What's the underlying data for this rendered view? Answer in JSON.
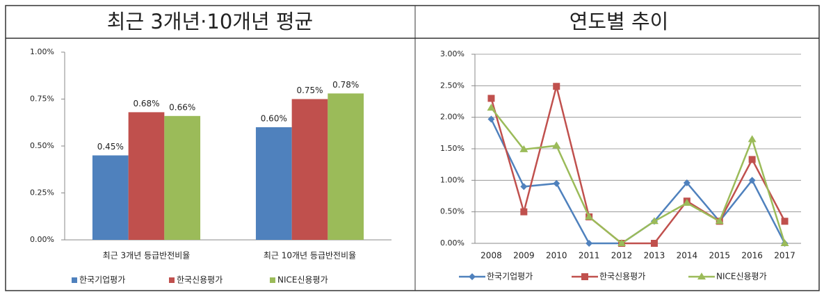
{
  "headers": [
    "최근 3개년·10개년 평균",
    "연도별 추이"
  ],
  "chart_data": [
    {
      "type": "bar",
      "categories": [
        "최근 3개년 등급반전비율",
        "최근 10개년 등급반전비율"
      ],
      "series": [
        {
          "name": "한국기업평가",
          "color": "#4f81bd",
          "values": [
            0.45,
            0.6
          ],
          "value_labels": [
            "0.45%",
            "0.60%"
          ]
        },
        {
          "name": "한국신용평가",
          "color": "#c0504d",
          "values": [
            0.68,
            0.75
          ],
          "value_labels": [
            "0.68%",
            "0.75%"
          ]
        },
        {
          "name": "NICE신용평가",
          "color": "#9bbb59",
          "values": [
            0.66,
            0.78
          ],
          "value_labels": [
            "0.66%",
            "0.78%"
          ]
        }
      ],
      "ylim": [
        0,
        1
      ],
      "yticks": [
        {
          "value": 0,
          "label": "0.00%"
        },
        {
          "value": 0.25,
          "label": "0.25%"
        },
        {
          "value": 0.5,
          "label": "0.50%"
        },
        {
          "value": 0.75,
          "label": "0.75%"
        },
        {
          "value": 1,
          "label": "1.00%"
        }
      ],
      "grid": false,
      "legend": "bottom"
    },
    {
      "type": "line",
      "categories": [
        "2008",
        "2009",
        "2010",
        "2011",
        "2012",
        "2013",
        "2014",
        "2015",
        "2016",
        "2017"
      ],
      "series": [
        {
          "name": "한국기업평가",
          "color": "#4f81bd",
          "marker": "diamond",
          "values": [
            1.97,
            0.9,
            0.95,
            0.0,
            0.0,
            0.35,
            0.96,
            0.35,
            1.0,
            0.0
          ]
        },
        {
          "name": "한국신용평가",
          "color": "#c0504d",
          "marker": "square",
          "values": [
            2.3,
            0.5,
            2.49,
            0.42,
            0.0,
            0.0,
            0.67,
            0.35,
            1.33,
            0.35
          ]
        },
        {
          "name": "NICE신용평가",
          "color": "#9bbb59",
          "marker": "triangle",
          "values": [
            2.15,
            1.49,
            1.55,
            0.42,
            0.0,
            0.35,
            0.64,
            0.35,
            1.65,
            0.0
          ]
        }
      ],
      "ylim": [
        0,
        3
      ],
      "yticks": [
        {
          "value": 0,
          "label": "0.00%"
        },
        {
          "value": 0.5,
          "label": "0.50%"
        },
        {
          "value": 1,
          "label": "1.00%"
        },
        {
          "value": 1.5,
          "label": "1.50%"
        },
        {
          "value": 2,
          "label": "2.00%"
        },
        {
          "value": 2.5,
          "label": "2.50%"
        },
        {
          "value": 3,
          "label": "3.00%"
        }
      ],
      "grid": true,
      "legend": "bottom"
    }
  ]
}
